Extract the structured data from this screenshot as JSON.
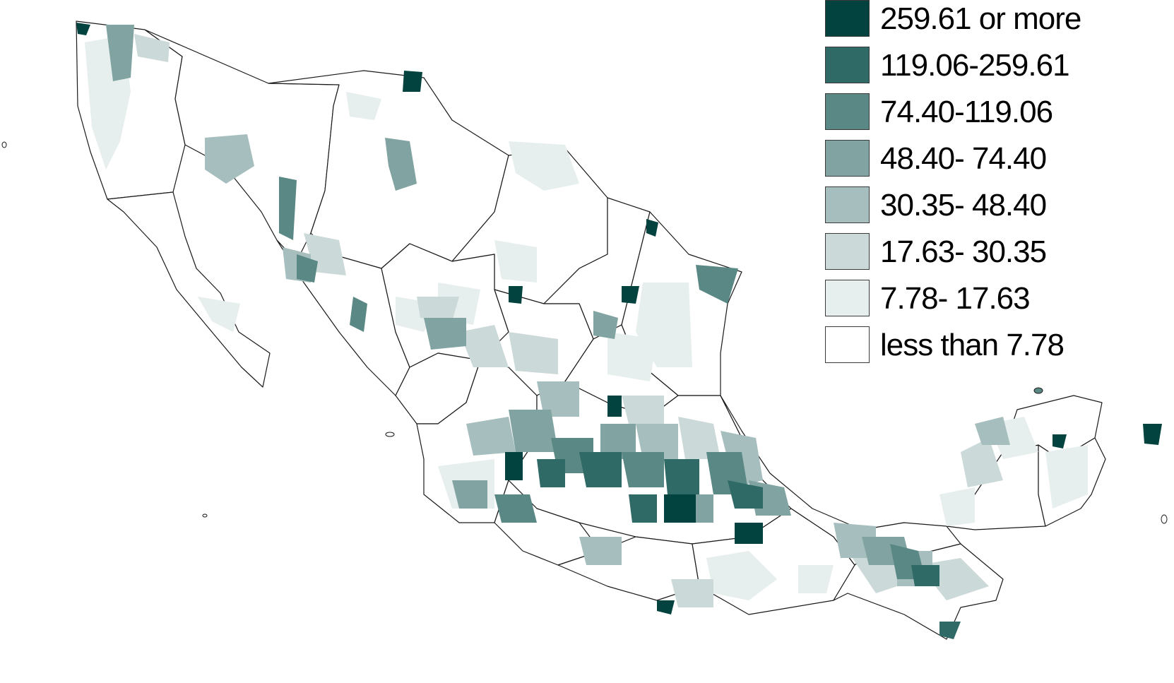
{
  "legend": {
    "items": [
      {
        "label": "259.61 or more",
        "color": "#02433f"
      },
      {
        "label": "119.06-259.61",
        "color": "#2f6a66"
      },
      {
        "label": "74.40-119.06",
        "color": "#5a8885"
      },
      {
        "label": "48.40- 74.40",
        "color": "#81a3a1"
      },
      {
        "label": "30.35- 48.40",
        "color": "#a6bebd"
      },
      {
        "label": "17.63- 30.35",
        "color": "#cbd9d8"
      },
      {
        "label": "7.78- 17.63",
        "color": "#e7eeee"
      },
      {
        "label": "less than 7.78",
        "color": "#ffffff"
      }
    ]
  },
  "map": {
    "region": "Mexico",
    "border_color": "#1a1a1a"
  }
}
